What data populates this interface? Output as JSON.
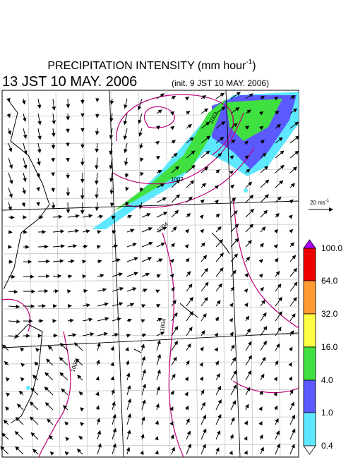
{
  "header": {
    "title": {
      "text": "PRECIPITATION INTENSITY (mm hour",
      "superscript": "-1",
      "suffix": ")"
    },
    "time": "13 JST 10 MAY. 2006",
    "init": "(init. 9 JST 10 MAY. 2006)"
  },
  "reference_vector": {
    "text": "20 ms",
    "superscript": "-1"
  },
  "colorbar": {
    "labels": [
      "100.0",
      "64.0",
      "32.0",
      "16.0",
      "4.0",
      "1.0",
      "0.4"
    ]
  },
  "contours": {
    "labels": [
      "1002",
      "1002",
      "1004",
      "1004",
      "1006"
    ]
  }
}
